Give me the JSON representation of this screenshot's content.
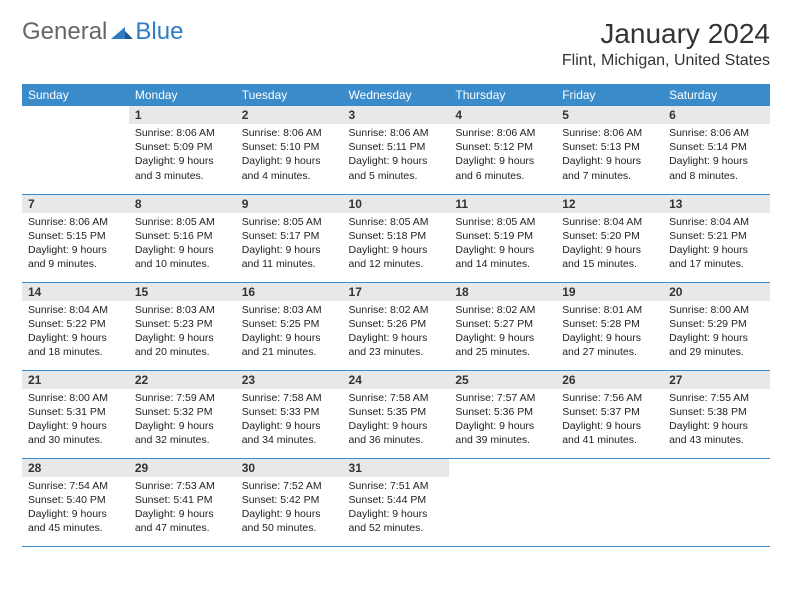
{
  "brand": {
    "part1": "General",
    "part2": "Blue"
  },
  "title": "January 2024",
  "location": "Flint, Michigan, United States",
  "colors": {
    "header_bg": "#3a8bc9",
    "header_fg": "#ffffff",
    "daynum_bg": "#e8e8e8",
    "row_border": "#3a8bc9",
    "brand_blue": "#2e7cc2"
  },
  "weekdays": [
    "Sunday",
    "Monday",
    "Tuesday",
    "Wednesday",
    "Thursday",
    "Friday",
    "Saturday"
  ],
  "weeks": [
    [
      {
        "empty": true
      },
      {
        "n": "1",
        "sr": "8:06 AM",
        "ss": "5:09 PM",
        "dl": "9 hours and 3 minutes."
      },
      {
        "n": "2",
        "sr": "8:06 AM",
        "ss": "5:10 PM",
        "dl": "9 hours and 4 minutes."
      },
      {
        "n": "3",
        "sr": "8:06 AM",
        "ss": "5:11 PM",
        "dl": "9 hours and 5 minutes."
      },
      {
        "n": "4",
        "sr": "8:06 AM",
        "ss": "5:12 PM",
        "dl": "9 hours and 6 minutes."
      },
      {
        "n": "5",
        "sr": "8:06 AM",
        "ss": "5:13 PM",
        "dl": "9 hours and 7 minutes."
      },
      {
        "n": "6",
        "sr": "8:06 AM",
        "ss": "5:14 PM",
        "dl": "9 hours and 8 minutes."
      }
    ],
    [
      {
        "n": "7",
        "sr": "8:06 AM",
        "ss": "5:15 PM",
        "dl": "9 hours and 9 minutes."
      },
      {
        "n": "8",
        "sr": "8:05 AM",
        "ss": "5:16 PM",
        "dl": "9 hours and 10 minutes."
      },
      {
        "n": "9",
        "sr": "8:05 AM",
        "ss": "5:17 PM",
        "dl": "9 hours and 11 minutes."
      },
      {
        "n": "10",
        "sr": "8:05 AM",
        "ss": "5:18 PM",
        "dl": "9 hours and 12 minutes."
      },
      {
        "n": "11",
        "sr": "8:05 AM",
        "ss": "5:19 PM",
        "dl": "9 hours and 14 minutes."
      },
      {
        "n": "12",
        "sr": "8:04 AM",
        "ss": "5:20 PM",
        "dl": "9 hours and 15 minutes."
      },
      {
        "n": "13",
        "sr": "8:04 AM",
        "ss": "5:21 PM",
        "dl": "9 hours and 17 minutes."
      }
    ],
    [
      {
        "n": "14",
        "sr": "8:04 AM",
        "ss": "5:22 PM",
        "dl": "9 hours and 18 minutes."
      },
      {
        "n": "15",
        "sr": "8:03 AM",
        "ss": "5:23 PM",
        "dl": "9 hours and 20 minutes."
      },
      {
        "n": "16",
        "sr": "8:03 AM",
        "ss": "5:25 PM",
        "dl": "9 hours and 21 minutes."
      },
      {
        "n": "17",
        "sr": "8:02 AM",
        "ss": "5:26 PM",
        "dl": "9 hours and 23 minutes."
      },
      {
        "n": "18",
        "sr": "8:02 AM",
        "ss": "5:27 PM",
        "dl": "9 hours and 25 minutes."
      },
      {
        "n": "19",
        "sr": "8:01 AM",
        "ss": "5:28 PM",
        "dl": "9 hours and 27 minutes."
      },
      {
        "n": "20",
        "sr": "8:00 AM",
        "ss": "5:29 PM",
        "dl": "9 hours and 29 minutes."
      }
    ],
    [
      {
        "n": "21",
        "sr": "8:00 AM",
        "ss": "5:31 PM",
        "dl": "9 hours and 30 minutes."
      },
      {
        "n": "22",
        "sr": "7:59 AM",
        "ss": "5:32 PM",
        "dl": "9 hours and 32 minutes."
      },
      {
        "n": "23",
        "sr": "7:58 AM",
        "ss": "5:33 PM",
        "dl": "9 hours and 34 minutes."
      },
      {
        "n": "24",
        "sr": "7:58 AM",
        "ss": "5:35 PM",
        "dl": "9 hours and 36 minutes."
      },
      {
        "n": "25",
        "sr": "7:57 AM",
        "ss": "5:36 PM",
        "dl": "9 hours and 39 minutes."
      },
      {
        "n": "26",
        "sr": "7:56 AM",
        "ss": "5:37 PM",
        "dl": "9 hours and 41 minutes."
      },
      {
        "n": "27",
        "sr": "7:55 AM",
        "ss": "5:38 PM",
        "dl": "9 hours and 43 minutes."
      }
    ],
    [
      {
        "n": "28",
        "sr": "7:54 AM",
        "ss": "5:40 PM",
        "dl": "9 hours and 45 minutes."
      },
      {
        "n": "29",
        "sr": "7:53 AM",
        "ss": "5:41 PM",
        "dl": "9 hours and 47 minutes."
      },
      {
        "n": "30",
        "sr": "7:52 AM",
        "ss": "5:42 PM",
        "dl": "9 hours and 50 minutes."
      },
      {
        "n": "31",
        "sr": "7:51 AM",
        "ss": "5:44 PM",
        "dl": "9 hours and 52 minutes."
      },
      {
        "empty": true
      },
      {
        "empty": true
      },
      {
        "empty": true
      }
    ]
  ],
  "labels": {
    "sunrise": "Sunrise:",
    "sunset": "Sunset:",
    "daylight": "Daylight:"
  }
}
